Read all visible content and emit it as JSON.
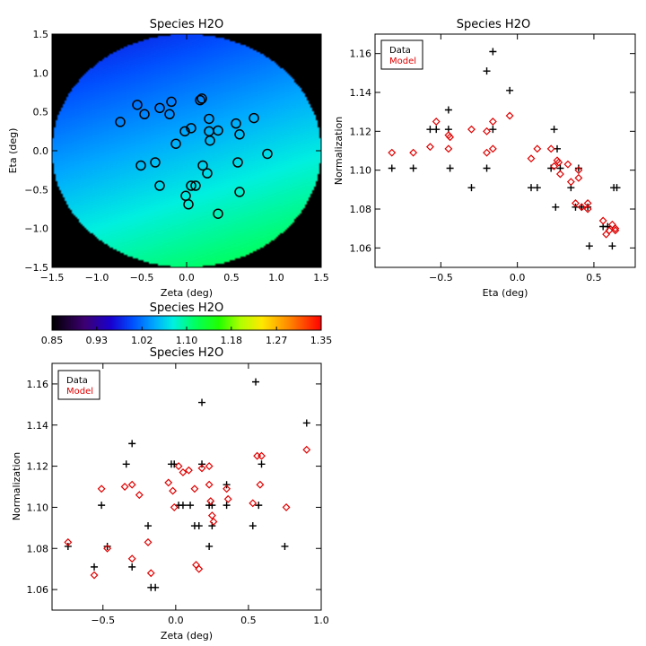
{
  "colors": {
    "data": "#000000",
    "model": "#e00000",
    "background": "#000000"
  },
  "chart_data": [
    {
      "id": "map",
      "type": "heatmap",
      "title": "Species H2O",
      "xlabel": "Zeta (deg)",
      "ylabel": "Eta (deg)",
      "xlim": [
        -1.5,
        1.5
      ],
      "ylim": [
        -1.5,
        1.5
      ],
      "x_ticks": [
        "−1.5",
        "−1.0",
        "−0.5",
        "0.0",
        "0.5",
        "1.0",
        "1.5"
      ],
      "y_ticks": [
        "−1.5",
        "−1.0",
        "−0.5",
        "0.0",
        "0.5",
        "1.0",
        "1.5"
      ],
      "x_tick_values": [
        -1.5,
        -1.0,
        -0.5,
        0.0,
        0.5,
        1.0,
        1.5
      ],
      "y_tick_values": [
        -1.5,
        -1.0,
        -0.5,
        0.0,
        0.5,
        1.0,
        1.5
      ],
      "field": {
        "shape": "disk",
        "radius": 1.5,
        "top_value": 0.99,
        "bottom_value": 1.11,
        "right_gradient": 0.015
      },
      "marker": "circle",
      "points": [
        {
          "x": -0.74,
          "y": 0.37
        },
        {
          "x": -0.55,
          "y": 0.59
        },
        {
          "x": -0.47,
          "y": 0.47
        },
        {
          "x": -0.3,
          "y": 0.55
        },
        {
          "x": -0.17,
          "y": 0.63
        },
        {
          "x": -0.19,
          "y": 0.47
        },
        {
          "x": 0.15,
          "y": 0.65
        },
        {
          "x": 0.17,
          "y": 0.67
        },
        {
          "x": 0.25,
          "y": 0.41
        },
        {
          "x": 0.25,
          "y": 0.25
        },
        {
          "x": 0.35,
          "y": 0.26
        },
        {
          "x": 0.26,
          "y": 0.13
        },
        {
          "x": 0.05,
          "y": 0.29
        },
        {
          "x": -0.02,
          "y": 0.25
        },
        {
          "x": -0.12,
          "y": 0.09
        },
        {
          "x": 0.55,
          "y": 0.35
        },
        {
          "x": 0.59,
          "y": 0.21
        },
        {
          "x": 0.75,
          "y": 0.42
        },
        {
          "x": 0.9,
          "y": -0.04
        },
        {
          "x": 0.57,
          "y": -0.15
        },
        {
          "x": -0.51,
          "y": -0.19
        },
        {
          "x": -0.35,
          "y": -0.15
        },
        {
          "x": 0.18,
          "y": -0.19
        },
        {
          "x": 0.23,
          "y": -0.29
        },
        {
          "x": 0.05,
          "y": -0.45
        },
        {
          "x": 0.1,
          "y": -0.45
        },
        {
          "x": -0.3,
          "y": -0.45
        },
        {
          "x": 0.59,
          "y": -0.53
        },
        {
          "x": -0.01,
          "y": -0.58
        },
        {
          "x": 0.02,
          "y": -0.69
        },
        {
          "x": 0.35,
          "y": -0.81
        }
      ]
    },
    {
      "id": "eta",
      "type": "scatter",
      "title": "Species H2O",
      "xlabel": "Eta (deg)",
      "ylabel": "Normalization",
      "xlim": [
        -0.93,
        0.77
      ],
      "ylim": [
        1.05,
        1.17
      ],
      "x_ticks": [
        "−0.5",
        "0.0",
        "0.5"
      ],
      "x_tick_values": [
        -0.5,
        0.0,
        0.5
      ],
      "y_ticks": [
        "1.06",
        "1.08",
        "1.10",
        "1.12",
        "1.14",
        "1.16"
      ],
      "y_tick_values": [
        1.06,
        1.08,
        1.1,
        1.12,
        1.14,
        1.16
      ],
      "legend": {
        "position": "top-left",
        "entries": [
          "Data",
          "Model"
        ]
      },
      "series": [
        {
          "name": "Data",
          "marker": "plus",
          "points": [
            {
              "x": -0.82,
              "y": 1.101
            },
            {
              "x": -0.68,
              "y": 1.101
            },
            {
              "x": -0.57,
              "y": 1.121
            },
            {
              "x": -0.53,
              "y": 1.121
            },
            {
              "x": -0.45,
              "y": 1.131
            },
            {
              "x": -0.45,
              "y": 1.121
            },
            {
              "x": -0.44,
              "y": 1.101
            },
            {
              "x": -0.3,
              "y": 1.091
            },
            {
              "x": -0.2,
              "y": 1.151
            },
            {
              "x": -0.16,
              "y": 1.161
            },
            {
              "x": -0.2,
              "y": 1.101
            },
            {
              "x": -0.16,
              "y": 1.121
            },
            {
              "x": -0.05,
              "y": 1.141
            },
            {
              "x": 0.09,
              "y": 1.091
            },
            {
              "x": 0.13,
              "y": 1.091
            },
            {
              "x": 0.24,
              "y": 1.121
            },
            {
              "x": 0.22,
              "y": 1.101
            },
            {
              "x": 0.26,
              "y": 1.111
            },
            {
              "x": 0.28,
              "y": 1.101
            },
            {
              "x": 0.25,
              "y": 1.081
            },
            {
              "x": 0.35,
              "y": 1.091
            },
            {
              "x": 0.4,
              "y": 1.101
            },
            {
              "x": 0.38,
              "y": 1.081
            },
            {
              "x": 0.42,
              "y": 1.081
            },
            {
              "x": 0.46,
              "y": 1.081
            },
            {
              "x": 0.47,
              "y": 1.061
            },
            {
              "x": 0.56,
              "y": 1.071
            },
            {
              "x": 0.59,
              "y": 1.071
            },
            {
              "x": 0.62,
              "y": 1.061
            },
            {
              "x": 0.63,
              "y": 1.091
            },
            {
              "x": 0.65,
              "y": 1.091
            }
          ]
        },
        {
          "name": "Model",
          "marker": "diamond",
          "points": [
            {
              "x": -0.82,
              "y": 1.109
            },
            {
              "x": -0.68,
              "y": 1.109
            },
            {
              "x": -0.57,
              "y": 1.112
            },
            {
              "x": -0.53,
              "y": 1.125
            },
            {
              "x": -0.45,
              "y": 1.118
            },
            {
              "x": -0.44,
              "y": 1.117
            },
            {
              "x": -0.45,
              "y": 1.111
            },
            {
              "x": -0.3,
              "y": 1.121
            },
            {
              "x": -0.2,
              "y": 1.12
            },
            {
              "x": -0.2,
              "y": 1.109
            },
            {
              "x": -0.16,
              "y": 1.125
            },
            {
              "x": -0.16,
              "y": 1.111
            },
            {
              "x": -0.05,
              "y": 1.128
            },
            {
              "x": 0.09,
              "y": 1.106
            },
            {
              "x": 0.13,
              "y": 1.111
            },
            {
              "x": 0.22,
              "y": 1.111
            },
            {
              "x": 0.24,
              "y": 1.102
            },
            {
              "x": 0.26,
              "y": 1.105
            },
            {
              "x": 0.27,
              "y": 1.104
            },
            {
              "x": 0.28,
              "y": 1.098
            },
            {
              "x": 0.33,
              "y": 1.103
            },
            {
              "x": 0.35,
              "y": 1.094
            },
            {
              "x": 0.4,
              "y": 1.1
            },
            {
              "x": 0.38,
              "y": 1.083
            },
            {
              "x": 0.4,
              "y": 1.096
            },
            {
              "x": 0.42,
              "y": 1.081
            },
            {
              "x": 0.46,
              "y": 1.083
            },
            {
              "x": 0.46,
              "y": 1.08
            },
            {
              "x": 0.56,
              "y": 1.074
            },
            {
              "x": 0.58,
              "y": 1.067
            },
            {
              "x": 0.6,
              "y": 1.069
            },
            {
              "x": 0.62,
              "y": 1.072
            },
            {
              "x": 0.64,
              "y": 1.069
            },
            {
              "x": 0.64,
              "y": 1.07
            }
          ]
        }
      ]
    },
    {
      "id": "colorbar",
      "type": "colorbar",
      "title": "Species H2O",
      "range": [
        0.85,
        1.35
      ],
      "tick_labels": [
        "0.85",
        "0.93",
        "1.02",
        "1.10",
        "1.18",
        "1.27",
        "1.35"
      ],
      "tick_values": [
        0.85,
        0.933,
        1.017,
        1.1,
        1.183,
        1.267,
        1.35
      ]
    },
    {
      "id": "zeta",
      "type": "scatter",
      "title": "Species H2O",
      "xlabel": "Zeta (deg)",
      "ylabel": "Normalization",
      "xlim": [
        -0.85,
        1.0
      ],
      "ylim": [
        1.05,
        1.17
      ],
      "x_ticks": [
        "−0.5",
        "0.0",
        "0.5",
        "1.0"
      ],
      "x_tick_values": [
        -0.5,
        0.0,
        0.5,
        1.0
      ],
      "y_ticks": [
        "1.06",
        "1.08",
        "1.10",
        "1.12",
        "1.14",
        "1.16"
      ],
      "y_tick_values": [
        1.06,
        1.08,
        1.1,
        1.12,
        1.14,
        1.16
      ],
      "legend": {
        "position": "top-left",
        "entries": [
          "Data",
          "Model"
        ]
      },
      "series": [
        {
          "name": "Data",
          "marker": "plus",
          "points": [
            {
              "x": -0.74,
              "y": 1.081
            },
            {
              "x": -0.56,
              "y": 1.071
            },
            {
              "x": -0.51,
              "y": 1.101
            },
            {
              "x": -0.47,
              "y": 1.081
            },
            {
              "x": -0.34,
              "y": 1.121
            },
            {
              "x": -0.3,
              "y": 1.131
            },
            {
              "x": -0.3,
              "y": 1.071
            },
            {
              "x": -0.19,
              "y": 1.091
            },
            {
              "x": -0.17,
              "y": 1.061
            },
            {
              "x": -0.14,
              "y": 1.061
            },
            {
              "x": -0.03,
              "y": 1.121
            },
            {
              "x": -0.01,
              "y": 1.121
            },
            {
              "x": 0.02,
              "y": 1.101
            },
            {
              "x": 0.05,
              "y": 1.101
            },
            {
              "x": 0.1,
              "y": 1.101
            },
            {
              "x": 0.13,
              "y": 1.091
            },
            {
              "x": 0.16,
              "y": 1.091
            },
            {
              "x": 0.18,
              "y": 1.151
            },
            {
              "x": 0.18,
              "y": 1.121
            },
            {
              "x": 0.23,
              "y": 1.101
            },
            {
              "x": 0.23,
              "y": 1.081
            },
            {
              "x": 0.25,
              "y": 1.091
            },
            {
              "x": 0.25,
              "y": 1.101
            },
            {
              "x": 0.35,
              "y": 1.111
            },
            {
              "x": 0.35,
              "y": 1.101
            },
            {
              "x": 0.53,
              "y": 1.091
            },
            {
              "x": 0.55,
              "y": 1.161
            },
            {
              "x": 0.57,
              "y": 1.101
            },
            {
              "x": 0.59,
              "y": 1.121
            },
            {
              "x": 0.75,
              "y": 1.081
            },
            {
              "x": 0.9,
              "y": 1.141
            }
          ]
        },
        {
          "name": "Model",
          "marker": "diamond",
          "points": [
            {
              "x": -0.74,
              "y": 1.083
            },
            {
              "x": -0.56,
              "y": 1.067
            },
            {
              "x": -0.51,
              "y": 1.109
            },
            {
              "x": -0.47,
              "y": 1.08
            },
            {
              "x": -0.35,
              "y": 1.11
            },
            {
              "x": -0.3,
              "y": 1.111
            },
            {
              "x": -0.3,
              "y": 1.075
            },
            {
              "x": -0.25,
              "y": 1.106
            },
            {
              "x": -0.19,
              "y": 1.083
            },
            {
              "x": -0.17,
              "y": 1.068
            },
            {
              "x": -0.05,
              "y": 1.112
            },
            {
              "x": -0.02,
              "y": 1.108
            },
            {
              "x": -0.01,
              "y": 1.1
            },
            {
              "x": 0.02,
              "y": 1.12
            },
            {
              "x": 0.05,
              "y": 1.117
            },
            {
              "x": 0.09,
              "y": 1.118
            },
            {
              "x": 0.13,
              "y": 1.109
            },
            {
              "x": 0.14,
              "y": 1.072
            },
            {
              "x": 0.16,
              "y": 1.07
            },
            {
              "x": 0.18,
              "y": 1.119
            },
            {
              "x": 0.23,
              "y": 1.12
            },
            {
              "x": 0.23,
              "y": 1.111
            },
            {
              "x": 0.24,
              "y": 1.103
            },
            {
              "x": 0.25,
              "y": 1.096
            },
            {
              "x": 0.26,
              "y": 1.093
            },
            {
              "x": 0.35,
              "y": 1.109
            },
            {
              "x": 0.36,
              "y": 1.104
            },
            {
              "x": 0.53,
              "y": 1.102
            },
            {
              "x": 0.56,
              "y": 1.125
            },
            {
              "x": 0.58,
              "y": 1.111
            },
            {
              "x": 0.59,
              "y": 1.125
            },
            {
              "x": 0.76,
              "y": 1.1
            },
            {
              "x": 0.9,
              "y": 1.128
            }
          ]
        }
      ]
    }
  ]
}
